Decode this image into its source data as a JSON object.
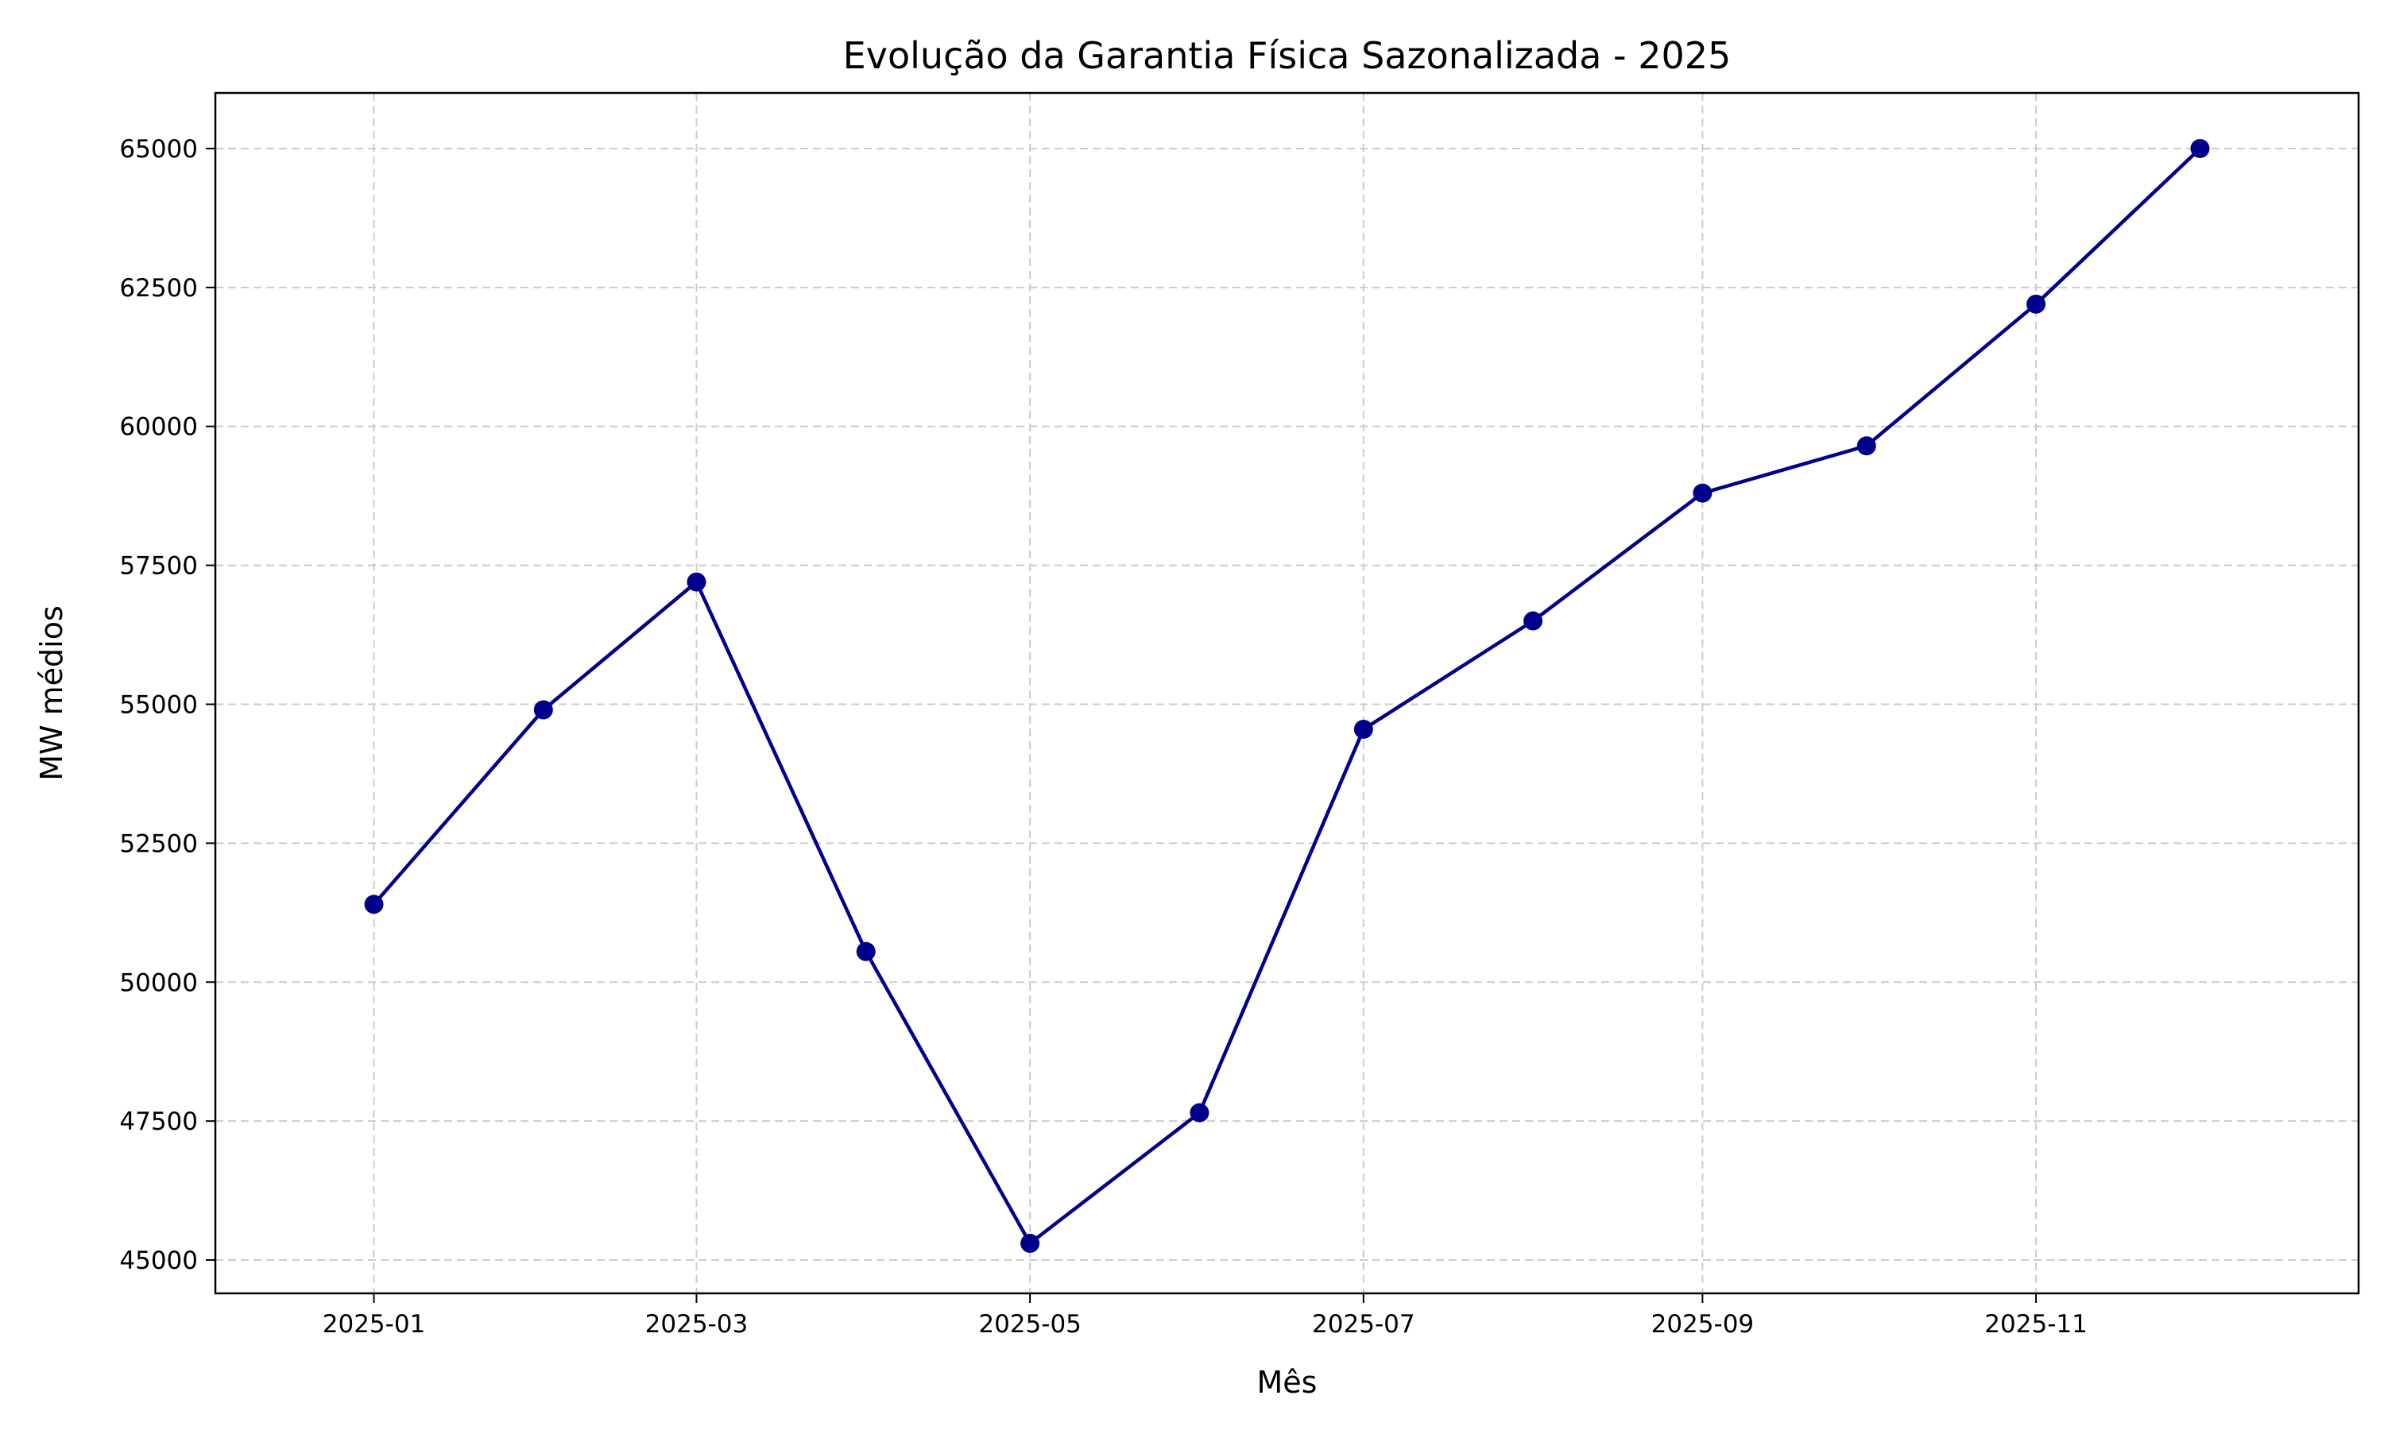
{
  "chart_data": {
    "type": "line",
    "title": "Evolução da Garantia Física Sazonalizada - 2025",
    "xlabel": "Mês",
    "ylabel": "MW médios",
    "x": [
      "2025-01-01",
      "2025-02-01",
      "2025-03-01",
      "2025-04-01",
      "2025-05-01",
      "2025-06-01",
      "2025-07-01",
      "2025-08-01",
      "2025-09-01",
      "2025-10-01",
      "2025-11-01",
      "2025-12-01"
    ],
    "series": [
      {
        "values": [
          51400,
          54900,
          57200,
          50550,
          45300,
          47650,
          54550,
          56500,
          58800,
          59650,
          62200,
          65000
        ],
        "color": "#00008b",
        "marker": "circle"
      }
    ],
    "xlim": [
      "2024-12-03",
      "2025-12-30"
    ],
    "ylim": [
      44400,
      66000
    ],
    "x_ticks": [
      "2025-01-01",
      "2025-03-01",
      "2025-05-01",
      "2025-07-01",
      "2025-09-01",
      "2025-11-01"
    ],
    "x_tick_labels": [
      "2025-01",
      "2025-03",
      "2025-05",
      "2025-07",
      "2025-09",
      "2025-11"
    ],
    "y_ticks": [
      45000,
      47500,
      50000,
      52500,
      55000,
      57500,
      60000,
      62500,
      65000
    ],
    "y_tick_labels": [
      "45000",
      "47500",
      "50000",
      "52500",
      "55000",
      "57500",
      "60000",
      "62500",
      "65000"
    ],
    "grid": true,
    "grid_style": "dashed",
    "grid_color": "#cccccc"
  }
}
